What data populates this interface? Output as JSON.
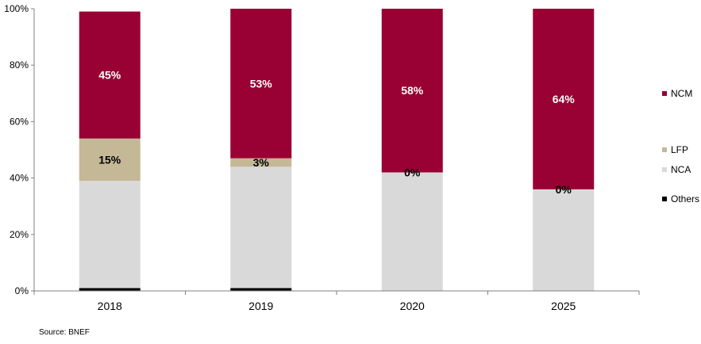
{
  "chart_data": {
    "type": "bar",
    "stacked": true,
    "categories": [
      "2018",
      "2019",
      "2020",
      "2025"
    ],
    "series": [
      {
        "name": "Others",
        "color": "#000000",
        "values": [
          1,
          1,
          0,
          0
        ],
        "labels": [
          "",
          "",
          "",
          ""
        ]
      },
      {
        "name": "NCA",
        "color": "#d9d9d9",
        "values": [
          38,
          43,
          42,
          36
        ],
        "labels": [
          "",
          "",
          "",
          ""
        ]
      },
      {
        "name": "LFP",
        "color": "#c4b896",
        "values": [
          15,
          3,
          0,
          0
        ],
        "labels": [
          "15%",
          "3%",
          "0%",
          "0%"
        ]
      },
      {
        "name": "NCM",
        "color": "#990033",
        "values": [
          45,
          53,
          58,
          64
        ],
        "labels": [
          "45%",
          "53%",
          "58%",
          "64%"
        ]
      }
    ],
    "ylim": [
      0,
      100
    ],
    "yticks": [
      "0%",
      "20%",
      "40%",
      "60%",
      "80%",
      "100%"
    ],
    "legend": [
      "NCM",
      "LFP",
      "NCA",
      "Others"
    ],
    "legend_placement": "right",
    "source": "Source: BNEF"
  }
}
